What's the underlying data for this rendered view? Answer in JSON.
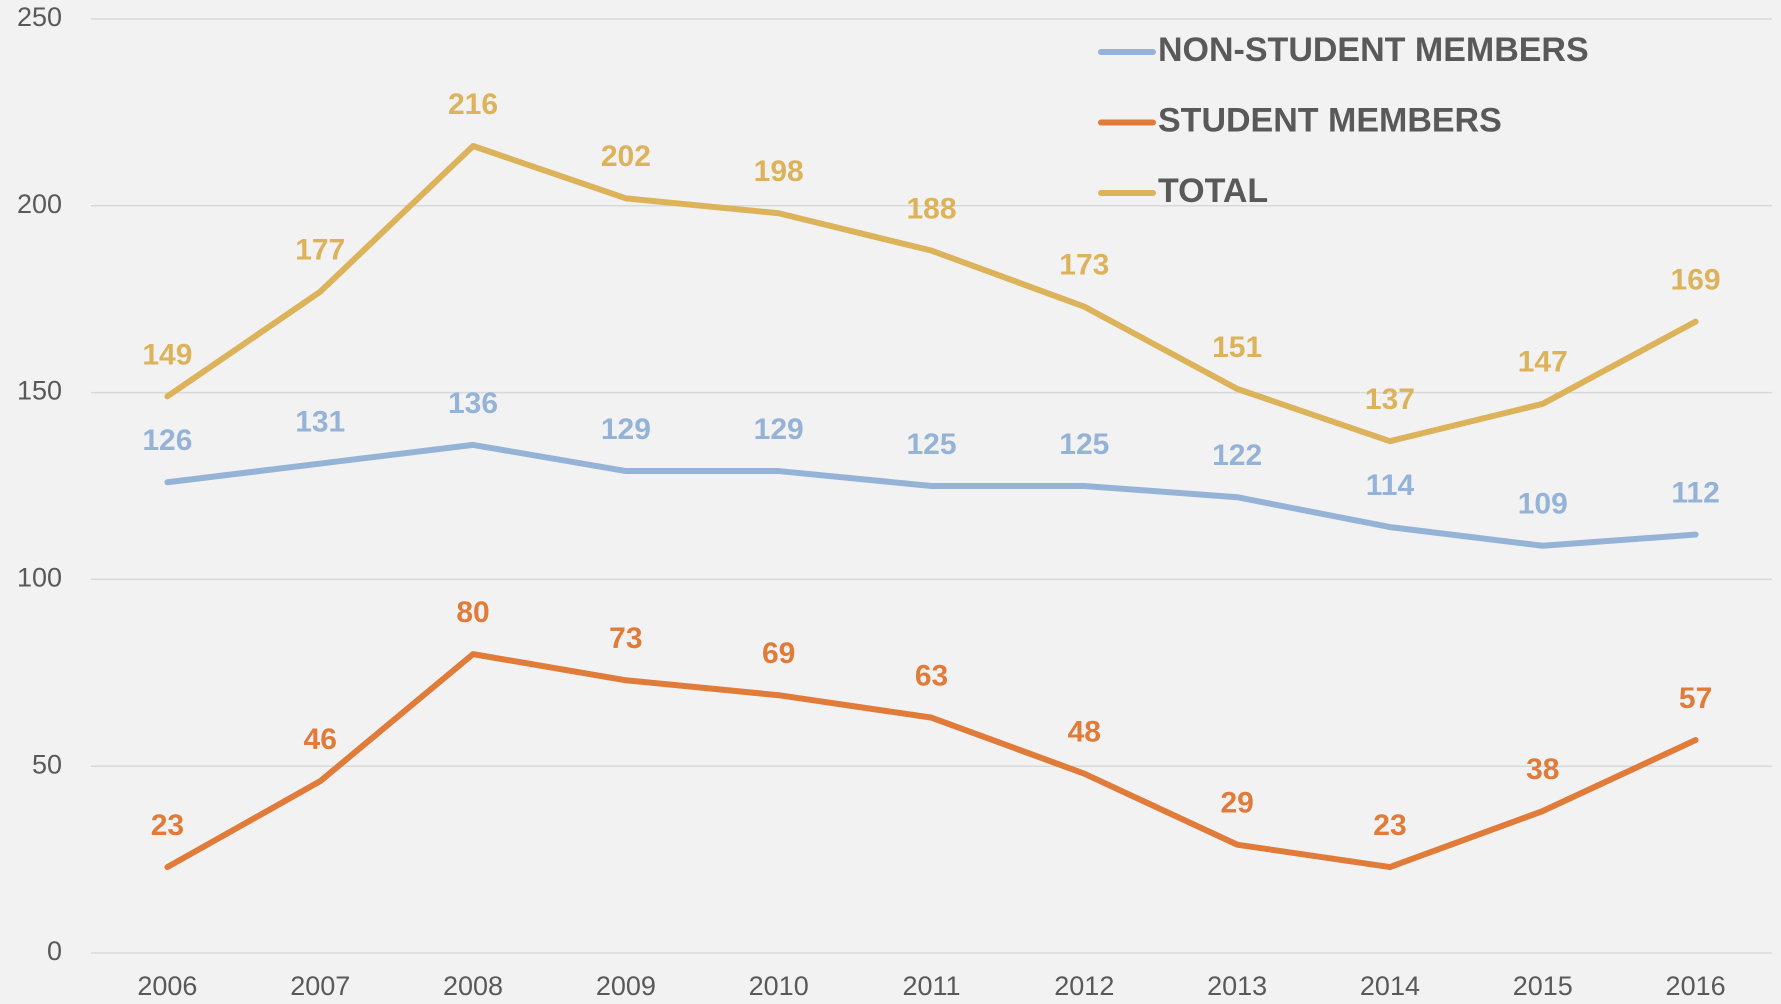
{
  "chart_data": {
    "type": "line",
    "categories": [
      "2006",
      "2007",
      "2008",
      "2009",
      "2010",
      "2011",
      "2012",
      "2013",
      "2014",
      "2015",
      "2016"
    ],
    "series": [
      {
        "name": "NON-STUDENT MEMBERS",
        "color": "#95b3d7",
        "values": [
          126,
          131,
          136,
          129,
          129,
          125,
          125,
          122,
          114,
          109,
          112
        ]
      },
      {
        "name": "STUDENT MEMBERS",
        "color": "#e07b39",
        "values": [
          23,
          46,
          80,
          73,
          69,
          63,
          48,
          29,
          23,
          38,
          57
        ]
      },
      {
        "name": "TOTAL",
        "color": "#dcb35a",
        "values": [
          149,
          177,
          216,
          202,
          198,
          188,
          173,
          151,
          137,
          147,
          169
        ]
      }
    ],
    "ylim": [
      0,
      250
    ],
    "yticks": [
      0,
      50,
      100,
      150,
      200,
      250
    ],
    "grid": true,
    "legend": "top-right"
  }
}
